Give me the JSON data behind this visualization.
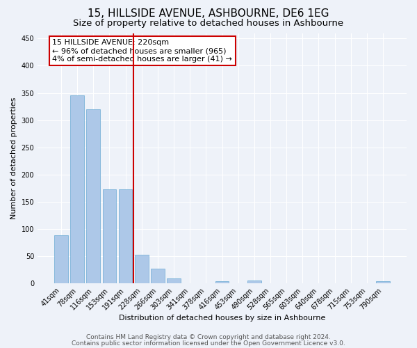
{
  "title": "15, HILLSIDE AVENUE, ASHBOURNE, DE6 1EG",
  "subtitle": "Size of property relative to detached houses in Ashbourne",
  "xlabel": "Distribution of detached houses by size in Ashbourne",
  "ylabel": "Number of detached properties",
  "categories": [
    "41sqm",
    "78sqm",
    "116sqm",
    "153sqm",
    "191sqm",
    "228sqm",
    "266sqm",
    "303sqm",
    "341sqm",
    "378sqm",
    "416sqm",
    "453sqm",
    "490sqm",
    "528sqm",
    "565sqm",
    "603sqm",
    "640sqm",
    "678sqm",
    "715sqm",
    "753sqm",
    "790sqm"
  ],
  "values": [
    88,
    345,
    320,
    173,
    173,
    53,
    27,
    9,
    0,
    0,
    4,
    0,
    5,
    0,
    0,
    0,
    0,
    0,
    0,
    0,
    4
  ],
  "bar_color": "#adc8e8",
  "bar_edge_color": "#6aaad4",
  "vline_index": 5,
  "vline_color": "#cc0000",
  "ylim": [
    0,
    460
  ],
  "yticks": [
    0,
    50,
    100,
    150,
    200,
    250,
    300,
    350,
    400,
    450
  ],
  "annotation_line1": "15 HILLSIDE AVENUE: 220sqm",
  "annotation_line2": "← 96% of detached houses are smaller (965)",
  "annotation_line3": "4% of semi-detached houses are larger (41) →",
  "annotation_box_color": "#cc0000",
  "annotation_box_bg": "#ffffff",
  "footer_line1": "Contains HM Land Registry data © Crown copyright and database right 2024.",
  "footer_line2": "Contains public sector information licensed under the Open Government Licence v3.0.",
  "background_color": "#eef2f9",
  "grid_color": "#ffffff",
  "title_fontsize": 11,
  "subtitle_fontsize": 9.5,
  "ylabel_fontsize": 8,
  "xlabel_fontsize": 8,
  "tick_fontsize": 7,
  "annotation_fontsize": 8,
  "footer_fontsize": 6.5
}
